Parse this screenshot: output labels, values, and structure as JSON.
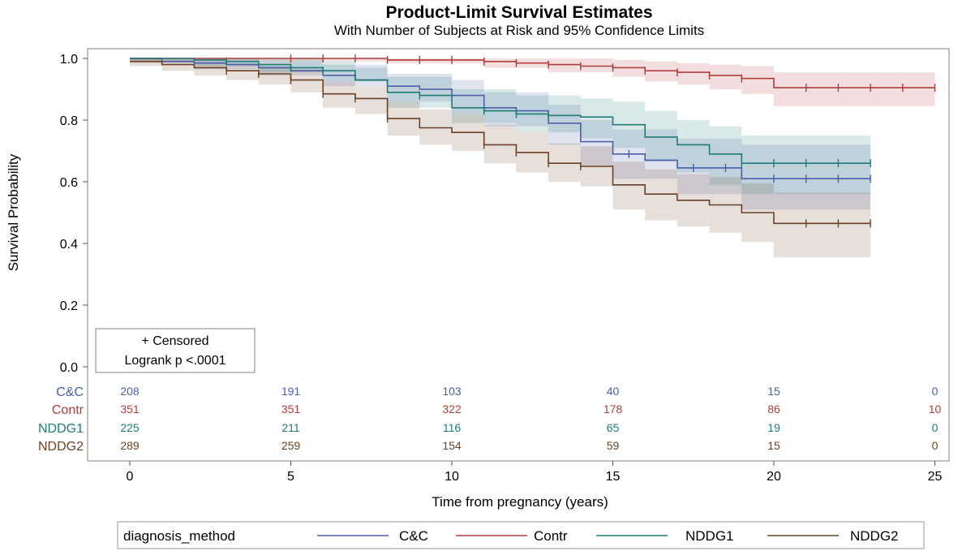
{
  "chart_data": {
    "type": "line",
    "subtype": "kaplan-meier step survival curves with 95% confidence bands",
    "title": "Product-Limit Survival Estimates",
    "subtitle": "With Number of Subjects at Risk and 95% Confidence Limits",
    "xlabel": "Time from pregnancy (years)",
    "ylabel": "Survival Probability",
    "xlim": [
      -1,
      25.5
    ],
    "ylim": [
      0,
      1.02
    ],
    "xticks": [
      "0",
      "5",
      "10",
      "15",
      "20",
      "25"
    ],
    "yticks": [
      "0.0",
      "0.2",
      "0.4",
      "0.6",
      "0.8",
      "1.0"
    ],
    "inset": {
      "censored_label": "+ Censored",
      "logrank_label": "Logrank p <.0001"
    },
    "legend": {
      "title": "diagnosis_method",
      "position": "bottom"
    },
    "risk_table": {
      "times": [
        0,
        5,
        10,
        15,
        20,
        25
      ]
    },
    "series": [
      {
        "name": "C&C",
        "color": "#4a5fa8",
        "steps": [
          [
            0,
            1.0
          ],
          [
            1,
            0.99
          ],
          [
            2,
            0.985
          ],
          [
            3,
            0.98
          ],
          [
            4,
            0.97
          ],
          [
            5,
            0.96
          ],
          [
            6,
            0.945
          ],
          [
            7,
            0.93
          ],
          [
            8,
            0.91
          ],
          [
            9,
            0.9
          ],
          [
            10,
            0.88
          ],
          [
            11,
            0.84
          ],
          [
            12,
            0.83
          ],
          [
            13,
            0.79
          ],
          [
            14,
            0.73
          ],
          [
            15,
            0.69
          ],
          [
            16,
            0.67
          ],
          [
            17,
            0.645
          ],
          [
            19,
            0.61
          ],
          [
            23,
            0.61
          ]
        ],
        "lower": [
          [
            0,
            0.985
          ],
          [
            2,
            0.965
          ],
          [
            4,
            0.945
          ],
          [
            6,
            0.91
          ],
          [
            8,
            0.86
          ],
          [
            10,
            0.82
          ],
          [
            11,
            0.78
          ],
          [
            13,
            0.72
          ],
          [
            14,
            0.65
          ],
          [
            15,
            0.61
          ],
          [
            17,
            0.56
          ],
          [
            19,
            0.51
          ],
          [
            23,
            0.5
          ]
        ],
        "upper": [
          [
            0,
            1.0
          ],
          [
            2,
            1.0
          ],
          [
            4,
            0.99
          ],
          [
            6,
            0.98
          ],
          [
            8,
            0.95
          ],
          [
            10,
            0.93
          ],
          [
            11,
            0.89
          ],
          [
            13,
            0.85
          ],
          [
            14,
            0.8
          ],
          [
            15,
            0.77
          ],
          [
            17,
            0.74
          ],
          [
            19,
            0.72
          ],
          [
            23,
            0.72
          ]
        ],
        "censors": [
          [
            15.5,
            0.69
          ],
          [
            17.5,
            0.645
          ],
          [
            18.5,
            0.645
          ],
          [
            20,
            0.61
          ],
          [
            21,
            0.61
          ],
          [
            22,
            0.61
          ],
          [
            23,
            0.61
          ]
        ],
        "at_risk": [
          "208",
          "191",
          "103",
          "40",
          "15",
          "0"
        ]
      },
      {
        "name": "Contr",
        "color": "#b23c3c",
        "steps": [
          [
            0,
            1.0
          ],
          [
            8,
            0.995
          ],
          [
            11,
            0.99
          ],
          [
            12,
            0.985
          ],
          [
            13,
            0.98
          ],
          [
            14,
            0.975
          ],
          [
            15,
            0.97
          ],
          [
            16,
            0.96
          ],
          [
            17,
            0.955
          ],
          [
            18,
            0.945
          ],
          [
            19,
            0.935
          ],
          [
            20,
            0.905
          ],
          [
            25,
            0.905
          ]
        ],
        "lower": [
          [
            0,
            0.99
          ],
          [
            8,
            0.985
          ],
          [
            11,
            0.97
          ],
          [
            13,
            0.955
          ],
          [
            15,
            0.94
          ],
          [
            16,
            0.925
          ],
          [
            17,
            0.915
          ],
          [
            18,
            0.9
          ],
          [
            19,
            0.885
          ],
          [
            20,
            0.845
          ],
          [
            25,
            0.845
          ]
        ],
        "upper": [
          [
            0,
            1.0
          ],
          [
            13,
            1.0
          ],
          [
            15,
            0.995
          ],
          [
            16,
            0.99
          ],
          [
            17,
            0.985
          ],
          [
            18,
            0.98
          ],
          [
            19,
            0.975
          ],
          [
            20,
            0.955
          ],
          [
            25,
            0.955
          ]
        ],
        "censors": [
          [
            5,
            1.0
          ],
          [
            6,
            1.0
          ],
          [
            7,
            1.0
          ],
          [
            8,
            0.995
          ],
          [
            9,
            0.995
          ],
          [
            10,
            0.995
          ],
          [
            11,
            0.99
          ],
          [
            12,
            0.985
          ],
          [
            13,
            0.98
          ],
          [
            14,
            0.975
          ],
          [
            15,
            0.97
          ],
          [
            16,
            0.96
          ],
          [
            17,
            0.955
          ],
          [
            18,
            0.945
          ],
          [
            19,
            0.935
          ],
          [
            21,
            0.905
          ],
          [
            22,
            0.905
          ],
          [
            23,
            0.905
          ],
          [
            24,
            0.905
          ],
          [
            25,
            0.905
          ]
        ],
        "at_risk": [
          "351",
          "351",
          "322",
          "178",
          "86",
          "10"
        ]
      },
      {
        "name": "NDDG1",
        "color": "#1f7c76",
        "steps": [
          [
            0,
            1.0
          ],
          [
            2,
            0.995
          ],
          [
            3,
            0.99
          ],
          [
            4,
            0.98
          ],
          [
            5,
            0.97
          ],
          [
            6,
            0.96
          ],
          [
            7,
            0.93
          ],
          [
            8,
            0.89
          ],
          [
            9,
            0.88
          ],
          [
            10,
            0.84
          ],
          [
            11,
            0.83
          ],
          [
            12,
            0.82
          ],
          [
            13,
            0.815
          ],
          [
            14,
            0.81
          ],
          [
            15,
            0.785
          ],
          [
            16,
            0.745
          ],
          [
            17,
            0.72
          ],
          [
            18,
            0.69
          ],
          [
            19,
            0.66
          ],
          [
            23,
            0.66
          ]
        ],
        "lower": [
          [
            0,
            0.99
          ],
          [
            2,
            0.975
          ],
          [
            4,
            0.955
          ],
          [
            6,
            0.925
          ],
          [
            8,
            0.84
          ],
          [
            10,
            0.79
          ],
          [
            12,
            0.76
          ],
          [
            14,
            0.74
          ],
          [
            15,
            0.71
          ],
          [
            16,
            0.665
          ],
          [
            17,
            0.63
          ],
          [
            18,
            0.59
          ],
          [
            19,
            0.56
          ],
          [
            23,
            0.56
          ]
        ],
        "upper": [
          [
            0,
            1.0
          ],
          [
            4,
            1.0
          ],
          [
            6,
            0.99
          ],
          [
            7,
            0.97
          ],
          [
            8,
            0.94
          ],
          [
            10,
            0.9
          ],
          [
            12,
            0.88
          ],
          [
            14,
            0.87
          ],
          [
            15,
            0.86
          ],
          [
            16,
            0.83
          ],
          [
            17,
            0.8
          ],
          [
            18,
            0.78
          ],
          [
            19,
            0.75
          ],
          [
            23,
            0.75
          ]
        ],
        "censors": [
          [
            3,
            0.99
          ],
          [
            5,
            0.97
          ],
          [
            6,
            0.96
          ],
          [
            9,
            0.88
          ],
          [
            11,
            0.83
          ],
          [
            12,
            0.82
          ],
          [
            13,
            0.815
          ],
          [
            19,
            0.66
          ],
          [
            20,
            0.66
          ],
          [
            21,
            0.66
          ],
          [
            22,
            0.66
          ],
          [
            23,
            0.66
          ]
        ],
        "at_risk": [
          "225",
          "211",
          "116",
          "65",
          "19",
          "0"
        ]
      },
      {
        "name": "NDDG2",
        "color": "#6b4226",
        "steps": [
          [
            0,
            0.99
          ],
          [
            1,
            0.98
          ],
          [
            2,
            0.97
          ],
          [
            3,
            0.96
          ],
          [
            4,
            0.95
          ],
          [
            5,
            0.93
          ],
          [
            6,
            0.885
          ],
          [
            7,
            0.87
          ],
          [
            8,
            0.805
          ],
          [
            9,
            0.775
          ],
          [
            10,
            0.76
          ],
          [
            11,
            0.72
          ],
          [
            12,
            0.695
          ],
          [
            13,
            0.66
          ],
          [
            14,
            0.65
          ],
          [
            15,
            0.59
          ],
          [
            16,
            0.56
          ],
          [
            17,
            0.54
          ],
          [
            18,
            0.525
          ],
          [
            19,
            0.5
          ],
          [
            20,
            0.465
          ],
          [
            23,
            0.465
          ]
        ],
        "lower": [
          [
            0,
            0.975
          ],
          [
            1,
            0.96
          ],
          [
            2,
            0.945
          ],
          [
            3,
            0.93
          ],
          [
            4,
            0.915
          ],
          [
            5,
            0.89
          ],
          [
            6,
            0.84
          ],
          [
            7,
            0.82
          ],
          [
            8,
            0.75
          ],
          [
            9,
            0.72
          ],
          [
            10,
            0.7
          ],
          [
            11,
            0.66
          ],
          [
            12,
            0.63
          ],
          [
            13,
            0.6
          ],
          [
            14,
            0.585
          ],
          [
            15,
            0.51
          ],
          [
            16,
            0.475
          ],
          [
            17,
            0.455
          ],
          [
            18,
            0.435
          ],
          [
            19,
            0.405
          ],
          [
            20,
            0.355
          ],
          [
            23,
            0.355
          ]
        ],
        "upper": [
          [
            0,
            1.0
          ],
          [
            1,
            0.995
          ],
          [
            2,
            0.99
          ],
          [
            3,
            0.985
          ],
          [
            4,
            0.975
          ],
          [
            5,
            0.965
          ],
          [
            6,
            0.925
          ],
          [
            7,
            0.91
          ],
          [
            8,
            0.86
          ],
          [
            9,
            0.835
          ],
          [
            10,
            0.82
          ],
          [
            11,
            0.785
          ],
          [
            12,
            0.76
          ],
          [
            13,
            0.725
          ],
          [
            14,
            0.715
          ],
          [
            15,
            0.665
          ],
          [
            16,
            0.64
          ],
          [
            17,
            0.625
          ],
          [
            18,
            0.615
          ],
          [
            19,
            0.595
          ],
          [
            20,
            0.565
          ],
          [
            23,
            0.565
          ]
        ],
        "censors": [
          [
            3,
            0.96
          ],
          [
            4,
            0.95
          ],
          [
            5,
            0.93
          ],
          [
            6,
            0.885
          ],
          [
            7,
            0.87
          ],
          [
            8,
            0.805
          ],
          [
            11,
            0.72
          ],
          [
            12,
            0.695
          ],
          [
            13,
            0.66
          ],
          [
            14,
            0.65
          ],
          [
            21,
            0.465
          ],
          [
            22,
            0.465
          ],
          [
            23,
            0.465
          ]
        ],
        "at_risk": [
          "289",
          "259",
          "154",
          "59",
          "15",
          "0"
        ]
      }
    ]
  }
}
